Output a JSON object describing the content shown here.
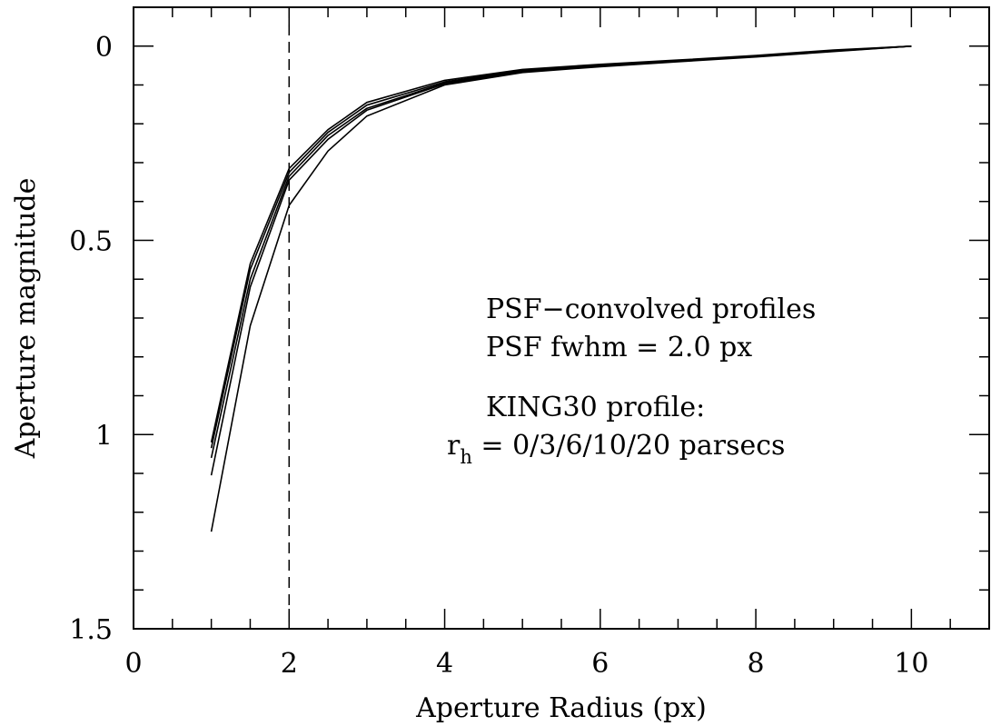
{
  "chart_data": {
    "type": "line",
    "title": "",
    "xlabel": "Aperture Radius (px)",
    "ylabel": "Aperture magnitude",
    "xlim": [
      0,
      11
    ],
    "ylim": [
      1.5,
      -0.1
    ],
    "y_inverted": true,
    "grid": false,
    "x_ticks": [
      "0",
      "2",
      "4",
      "6",
      "8",
      "10"
    ],
    "x_tick_values": [
      0,
      2,
      4,
      6,
      8,
      10
    ],
    "y_ticks": [
      "0",
      "0.5",
      "1",
      "1.5"
    ],
    "y_tick_values": [
      0,
      0.5,
      1,
      1.5
    ],
    "x": [
      1,
      1.5,
      2,
      2.5,
      3,
      4,
      5,
      6,
      7,
      8,
      9,
      10
    ],
    "series": [
      {
        "values": [
          1.02,
          0.56,
          0.315,
          0.215,
          0.145,
          0.088,
          0.06,
          0.047,
          0.036,
          0.024,
          0.01,
          0.0
        ]
      },
      {
        "values": [
          1.035,
          0.575,
          0.325,
          0.222,
          0.152,
          0.092,
          0.062,
          0.048,
          0.037,
          0.025,
          0.011,
          0.0
        ]
      },
      {
        "values": [
          1.06,
          0.6,
          0.335,
          0.23,
          0.16,
          0.095,
          0.064,
          0.05,
          0.038,
          0.026,
          0.012,
          0.0
        ]
      },
      {
        "values": [
          1.105,
          0.62,
          0.345,
          0.24,
          0.165,
          0.097,
          0.066,
          0.051,
          0.039,
          0.027,
          0.013,
          0.0
        ]
      },
      {
        "values": [
          1.25,
          0.72,
          0.41,
          0.27,
          0.18,
          0.1,
          0.068,
          0.053,
          0.04,
          0.028,
          0.014,
          0.0
        ]
      }
    ],
    "vline": {
      "x": 2,
      "style": "dashed"
    },
    "annotations": {
      "line1": "PSF−convolved profiles",
      "line2": "PSF fwhm = 2.0 px",
      "line3": "KING30 profile:",
      "line4_prefix": "r",
      "line4_sub": "h",
      "line4_rest": " = 0/3/6/10/20 parsecs"
    }
  }
}
